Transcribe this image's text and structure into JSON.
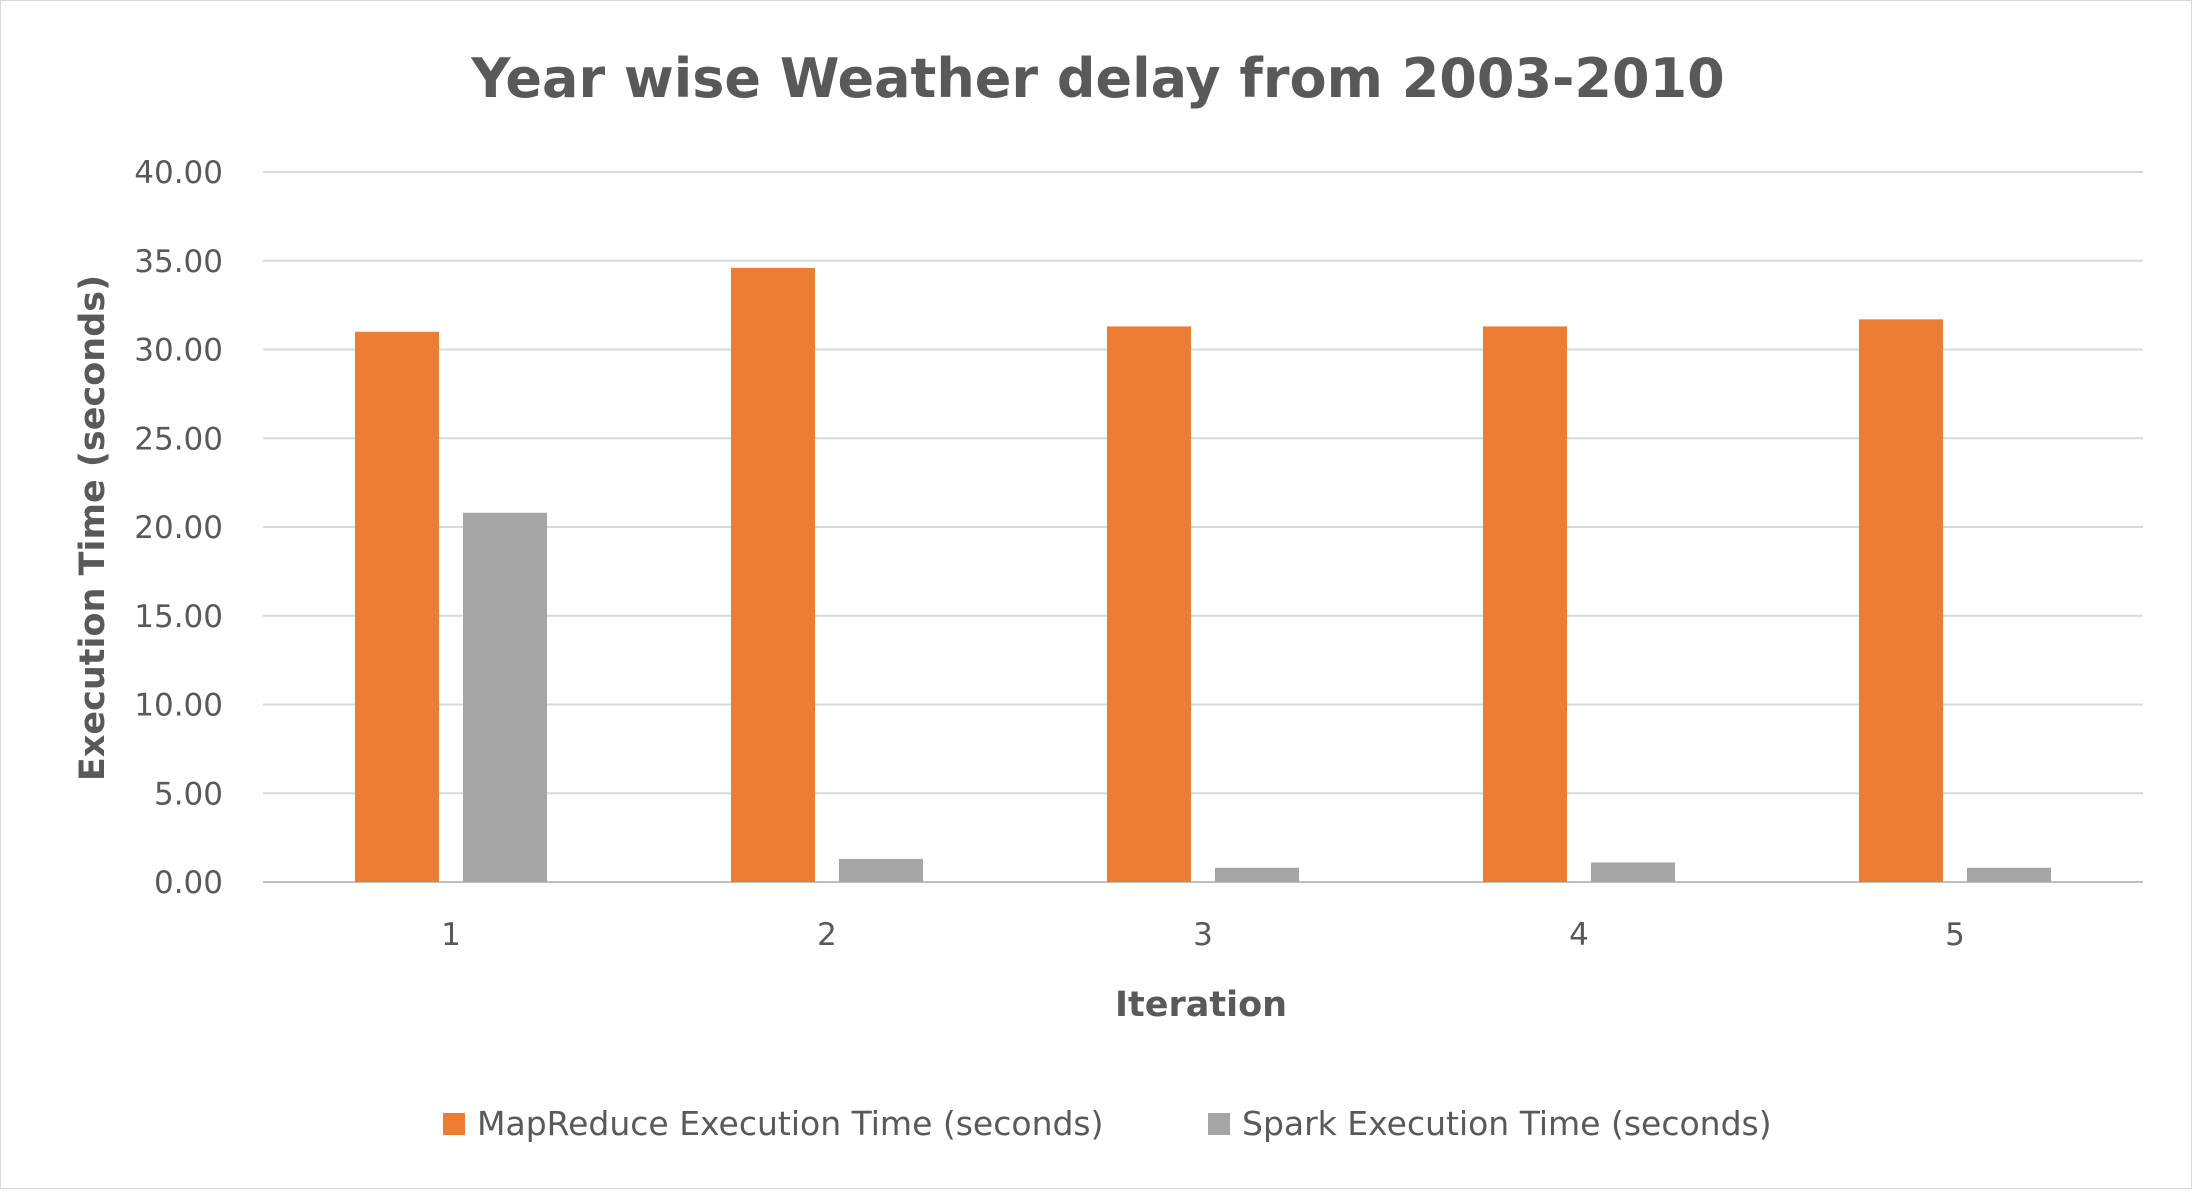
{
  "chart_data": {
    "type": "bar",
    "title": "Year wise Weather delay from 2003-2010",
    "xlabel": "Iteration",
    "ylabel": "Execution Time (seconds)",
    "categories": [
      "1",
      "2",
      "3",
      "4",
      "5"
    ],
    "ylim": [
      0,
      40
    ],
    "yticks": [
      "0.00",
      "5.00",
      "10.00",
      "15.00",
      "20.00",
      "25.00",
      "30.00",
      "35.00",
      "40.00"
    ],
    "grid": true,
    "legend_position": "bottom",
    "series": [
      {
        "name": "MapReduce Execution Time (seconds)",
        "color": "#ed7d31",
        "values": [
          31.0,
          34.6,
          31.3,
          31.3,
          31.7
        ]
      },
      {
        "name": "Spark Execution Time (seconds)",
        "color": "#a5a5a5",
        "values": [
          20.8,
          1.3,
          0.8,
          1.1,
          0.8
        ]
      }
    ]
  }
}
